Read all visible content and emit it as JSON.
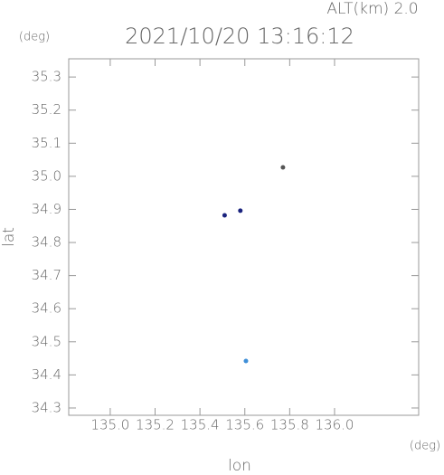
{
  "chart_data": {
    "type": "scatter",
    "title": "2021/10/20 13:16:12",
    "annotation": "ALT(km) 2.0",
    "x_unit": "(deg)",
    "y_unit": "(deg)",
    "xlabel": "lon",
    "ylabel": "lat",
    "x": [
      135.51,
      135.58,
      135.77,
      135.605
    ],
    "values": [
      34.882,
      34.896,
      35.027,
      34.442
    ],
    "colors": [
      "#1a237e",
      "#1a237e",
      "#555555",
      "#3f8fd8"
    ],
    "xlim": [
      134.815,
      136.375
    ],
    "ylim": [
      34.278,
      35.355
    ],
    "xticks": [
      {
        "value": 135.0,
        "label": "135.0"
      },
      135.2,
      135.4,
      135.6,
      135.8,
      {
        "value": 136.0,
        "label": "136.0"
      }
    ],
    "yticks": [
      35.3,
      35.2,
      35.1,
      {
        "value": 35.0,
        "label": "35.0"
      },
      34.9,
      34.8,
      34.7,
      34.6,
      34.5,
      34.4,
      34.3
    ]
  }
}
